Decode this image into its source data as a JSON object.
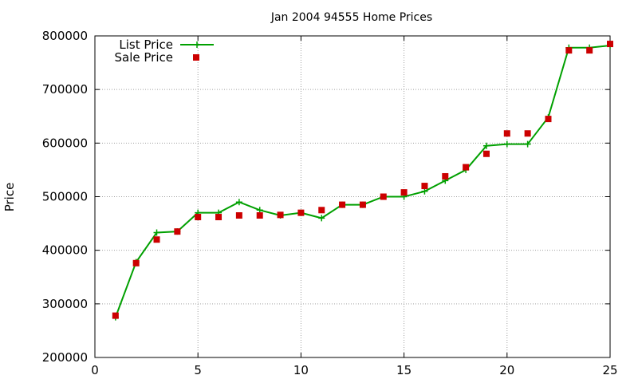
{
  "chart_data": {
    "type": "line",
    "title": "Jan 2004 94555 Home Prices",
    "xlabel": "",
    "ylabel": "Price",
    "xlim": [
      0,
      25
    ],
    "ylim": [
      200000,
      800000
    ],
    "x_ticks": [
      0,
      5,
      10,
      15,
      20,
      25
    ],
    "y_ticks": [
      200000,
      300000,
      400000,
      500000,
      600000,
      700000,
      800000
    ],
    "grid": true,
    "legend_position": "top-left",
    "series": [
      {
        "name": "List Price",
        "style": "line-with-plus-markers",
        "color": "#00a000",
        "x": [
          1,
          2,
          3,
          4,
          5,
          6,
          7,
          8,
          9,
          10,
          11,
          12,
          13,
          14,
          15,
          16,
          17,
          18,
          19,
          20,
          21,
          22,
          23,
          24,
          25
        ],
        "values": [
          275000,
          378000,
          433000,
          435000,
          470000,
          470000,
          490000,
          475000,
          465000,
          470000,
          460000,
          485000,
          485000,
          500000,
          500000,
          510000,
          530000,
          550000,
          595000,
          598000,
          598000,
          648000,
          778000,
          778000,
          782000
        ]
      },
      {
        "name": "Sale Price",
        "style": "square-markers",
        "color": "#cc0000",
        "x": [
          1,
          2,
          3,
          4,
          5,
          6,
          7,
          8,
          9,
          10,
          11,
          12,
          13,
          14,
          15,
          16,
          17,
          18,
          19,
          20,
          21,
          22,
          23,
          24,
          25
        ],
        "values": [
          278000,
          376000,
          420000,
          435000,
          462000,
          462000,
          465000,
          465000,
          466000,
          470000,
          475000,
          485000,
          485000,
          500000,
          508000,
          520000,
          538000,
          555000,
          580000,
          618000,
          618000,
          645000,
          773000,
          773000,
          785000
        ]
      }
    ]
  }
}
